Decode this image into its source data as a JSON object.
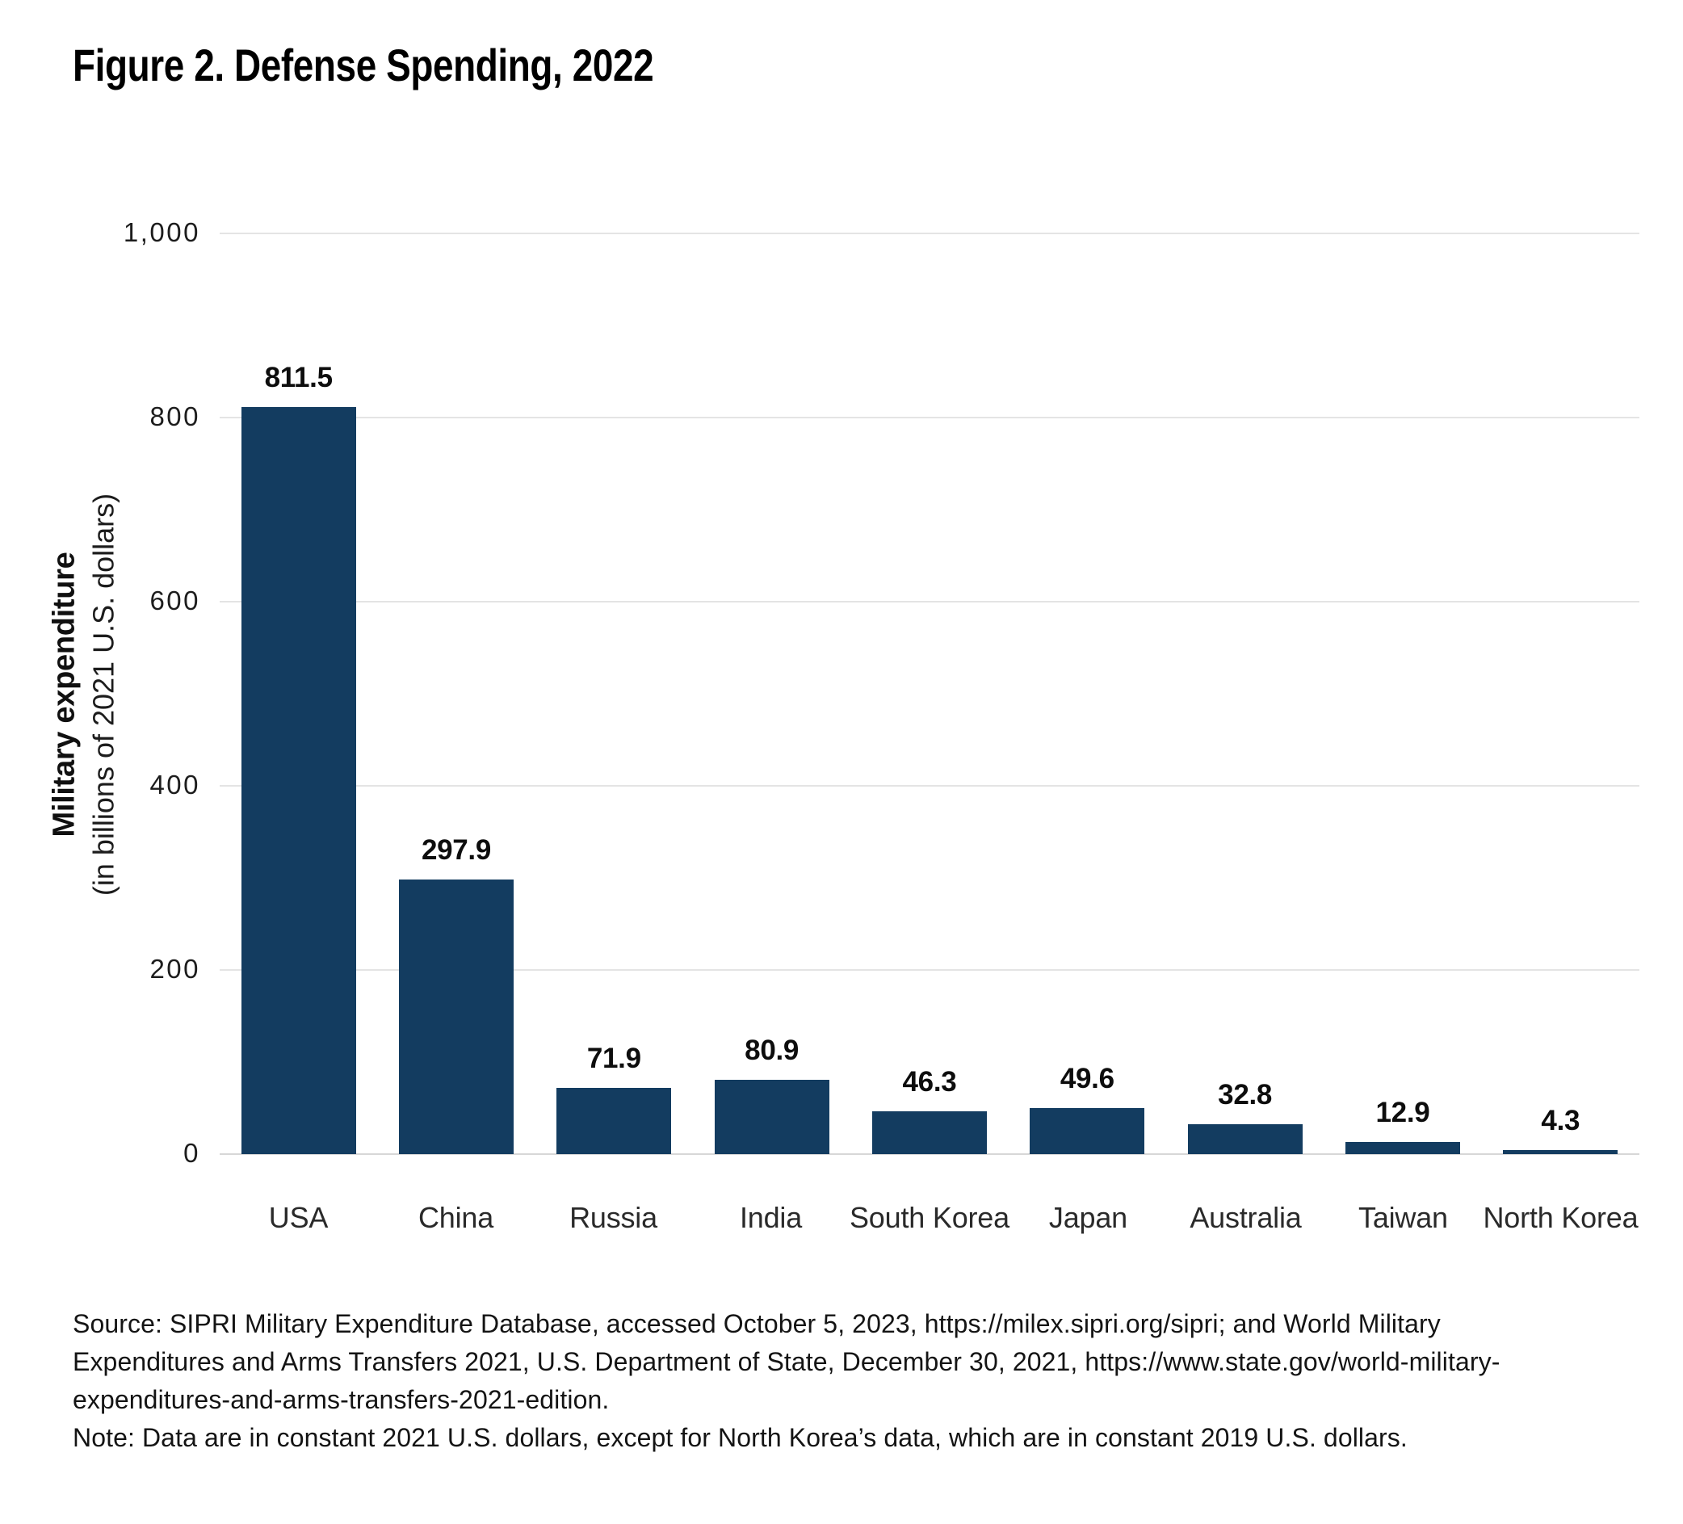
{
  "figure_title": "Figure 2. Defense Spending, 2022",
  "chart_data": {
    "type": "bar",
    "title": "Figure 2. Defense Spending, 2022",
    "categories": [
      "USA",
      "China",
      "Russia",
      "India",
      "South Korea",
      "Japan",
      "Australia",
      "Taiwan",
      "North Korea"
    ],
    "values": [
      811.5,
      297.9,
      71.9,
      80.9,
      46.3,
      49.6,
      32.8,
      12.9,
      4.3
    ],
    "value_labels": [
      "811.5",
      "297.9",
      "71.9",
      "80.9",
      "46.3",
      "49.6",
      "32.8",
      "12.9",
      "4.3"
    ],
    "xlabel": "",
    "ylabel": "Military expenditure",
    "ylabel_sub": "(in billions of 2021 U.S. dollars)",
    "ylim": [
      0,
      1000
    ],
    "yticks": [
      0,
      200,
      400,
      600,
      800,
      1000
    ],
    "ytick_labels": [
      "0",
      "200",
      "400",
      "600",
      "800",
      "1,000"
    ],
    "grid": "horizontal",
    "legend": "none",
    "bar_color": "#133c60",
    "gridline_color": "#e4e4e4"
  },
  "footer": {
    "source_lines": [
      "Source: SIPRI Military Expenditure Database, accessed October 5, 2023, https://milex.sipri.org/sipri; and World Military",
      "Expenditures and Arms Transfers 2021, U.S. Department of State, December 30, 2021, https://www.state.gov/world-military-",
      "expenditures-and-arms-transfers-2021-edition."
    ],
    "note": "Note: Data are in constant 2021 U.S. dollars, except for North Korea’s data, which are in constant 2019 U.S. dollars."
  }
}
